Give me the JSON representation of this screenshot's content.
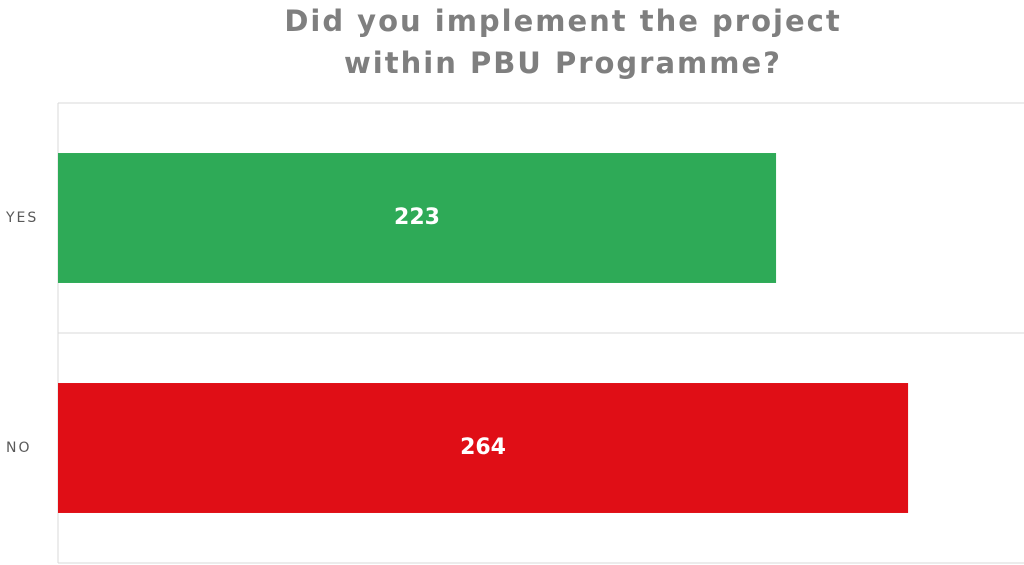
{
  "chart_data": {
    "type": "hbar",
    "title": "Did you implement the project within PBU Programme?",
    "categories": [
      "YES",
      "NO"
    ],
    "values": [
      223,
      264
    ],
    "colors": [
      "#2eaa57",
      "#e00e16"
    ],
    "xlim": [
      0,
      300
    ],
    "grid": true
  }
}
